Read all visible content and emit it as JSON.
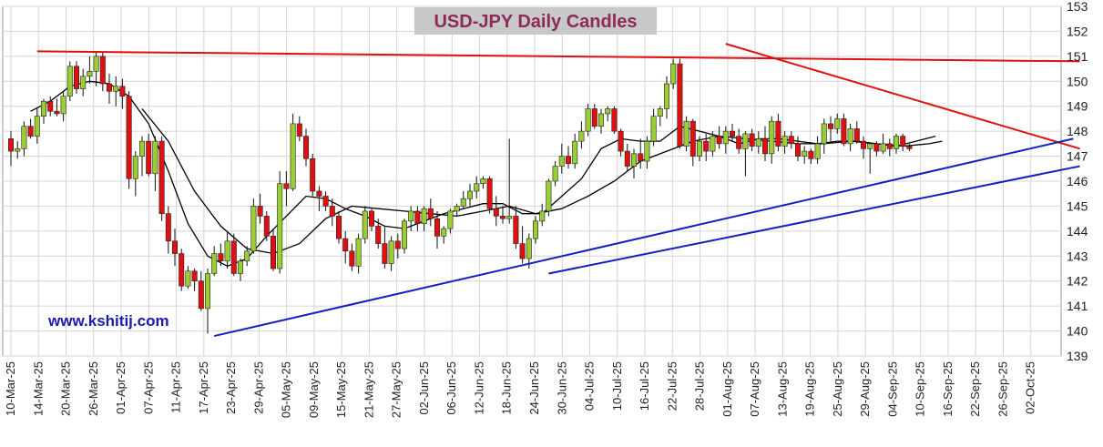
{
  "title": "USD-JPY Daily Candles",
  "watermark": "www.kshitij.com",
  "chart_data": {
    "type": "candlestick",
    "title": "USD-JPY Daily Candles",
    "ylim": [
      139,
      153
    ],
    "y_ticks": [
      139,
      140,
      141,
      142,
      143,
      144,
      145,
      146,
      147,
      148,
      149,
      150,
      151,
      152,
      153
    ],
    "x_tick_labels": [
      "10-Mar-25",
      "14-Mar-25",
      "20-Mar-25",
      "26-Mar-25",
      "01-Apr-25",
      "07-Apr-25",
      "11-Apr-25",
      "17-Apr-25",
      "23-Apr-25",
      "29-Apr-25",
      "05-May-25",
      "09-May-25",
      "15-May-25",
      "21-May-25",
      "27-May-25",
      "02-Jun-25",
      "06-Jun-25",
      "12-Jun-25",
      "18-Jun-25",
      "24-Jun-25",
      "30-Jun-25",
      "04-Jul-25",
      "10-Jul-25",
      "16-Jul-25",
      "22-Jul-25",
      "28-Jul-25",
      "01-Aug-25",
      "07-Aug-25",
      "13-Aug-25",
      "19-Aug-25",
      "25-Aug-25",
      "29-Aug-25",
      "04-Sep-25",
      "10-Sep-25",
      "16-Sep-25",
      "22-Sep-25",
      "26-Sep-25",
      "02-Oct-25"
    ],
    "grid": true,
    "colors": {
      "up": "#9acd32",
      "down": "#e01010",
      "wick": "#111111",
      "resistance": "#e01010",
      "support": "#1020c0",
      "ma": "#000000"
    },
    "candles": [
      [
        147.7,
        148.0,
        146.6,
        147.2
      ],
      [
        147.2,
        147.6,
        146.9,
        147.3
      ],
      [
        147.3,
        148.4,
        147.0,
        148.2
      ],
      [
        148.2,
        148.5,
        147.7,
        147.8
      ],
      [
        147.8,
        148.9,
        147.5,
        148.6
      ],
      [
        148.6,
        149.3,
        148.3,
        149.2
      ],
      [
        149.2,
        149.4,
        148.6,
        148.8
      ],
      [
        148.8,
        149.3,
        148.6,
        148.7
      ],
      [
        148.7,
        149.6,
        148.4,
        149.4
      ],
      [
        149.4,
        150.8,
        149.2,
        150.6
      ],
      [
        150.6,
        150.8,
        149.5,
        149.7
      ],
      [
        149.7,
        150.5,
        149.4,
        150.2
      ],
      [
        150.2,
        151.0,
        149.9,
        150.4
      ],
      [
        150.4,
        151.2,
        149.8,
        151.0
      ],
      [
        151.0,
        151.2,
        149.6,
        149.9
      ],
      [
        149.9,
        150.3,
        149.1,
        149.6
      ],
      [
        149.6,
        150.2,
        149.0,
        149.8
      ],
      [
        149.8,
        150.1,
        148.9,
        149.4
      ],
      [
        149.4,
        149.6,
        145.7,
        146.1
      ],
      [
        146.1,
        147.2,
        145.4,
        147.0
      ],
      [
        147.0,
        147.8,
        146.2,
        147.6
      ],
      [
        147.6,
        147.9,
        146.2,
        146.3
      ],
      [
        146.3,
        147.8,
        145.6,
        147.6
      ],
      [
        147.6,
        147.8,
        144.4,
        144.7
      ],
      [
        144.7,
        145.0,
        143.1,
        143.6
      ],
      [
        143.6,
        144.1,
        142.6,
        143.1
      ],
      [
        143.1,
        143.3,
        141.6,
        141.8
      ],
      [
        141.8,
        142.6,
        141.7,
        142.4
      ],
      [
        142.4,
        142.5,
        141.6,
        142.0
      ],
      [
        142.0,
        142.4,
        140.8,
        140.9
      ],
      [
        140.9,
        142.5,
        139.9,
        142.3
      ],
      [
        142.3,
        143.4,
        142.2,
        143.1
      ],
      [
        143.1,
        143.5,
        142.6,
        142.8
      ],
      [
        142.8,
        144.0,
        142.5,
        143.6
      ],
      [
        143.6,
        143.9,
        142.2,
        142.3
      ],
      [
        142.3,
        142.9,
        142.0,
        142.8
      ],
      [
        142.8,
        143.4,
        142.6,
        143.2
      ],
      [
        143.2,
        145.3,
        143.1,
        145.0
      ],
      [
        145.0,
        145.5,
        144.3,
        144.6
      ],
      [
        144.6,
        144.8,
        143.6,
        143.8
      ],
      [
        143.8,
        144.1,
        142.4,
        142.5
      ],
      [
        142.5,
        146.4,
        142.3,
        145.9
      ],
      [
        145.9,
        146.4,
        145.0,
        145.7
      ],
      [
        145.7,
        148.7,
        145.6,
        148.3
      ],
      [
        148.3,
        148.6,
        147.6,
        147.8
      ],
      [
        147.8,
        148.1,
        146.6,
        146.9
      ],
      [
        146.9,
        147.1,
        145.4,
        145.6
      ],
      [
        145.6,
        145.8,
        144.8,
        145.4
      ],
      [
        145.4,
        145.6,
        144.8,
        145.0
      ],
      [
        145.0,
        145.3,
        144.2,
        144.6
      ],
      [
        144.6,
        144.8,
        143.5,
        143.7
      ],
      [
        143.7,
        144.0,
        142.7,
        143.2
      ],
      [
        143.2,
        143.5,
        142.4,
        142.6
      ],
      [
        142.6,
        143.9,
        142.3,
        143.7
      ],
      [
        143.7,
        145.0,
        143.5,
        144.8
      ],
      [
        144.8,
        144.9,
        144.0,
        144.2
      ],
      [
        144.2,
        144.5,
        143.3,
        143.5
      ],
      [
        143.5,
        144.2,
        142.5,
        142.7
      ],
      [
        142.7,
        143.8,
        142.4,
        143.6
      ],
      [
        143.6,
        143.9,
        142.9,
        143.3
      ],
      [
        143.3,
        144.5,
        143.1,
        144.4
      ],
      [
        144.4,
        145.0,
        144.0,
        144.8
      ],
      [
        144.8,
        145.0,
        144.0,
        144.3
      ],
      [
        144.3,
        145.0,
        144.0,
        144.9
      ],
      [
        144.9,
        145.3,
        144.2,
        144.5
      ],
      [
        144.5,
        144.8,
        143.3,
        143.8
      ],
      [
        143.8,
        144.2,
        143.5,
        144.1
      ],
      [
        144.1,
        144.9,
        143.9,
        144.8
      ],
      [
        144.8,
        145.1,
        144.6,
        145.0
      ],
      [
        145.0,
        145.6,
        144.9,
        145.3
      ],
      [
        145.3,
        145.9,
        145.0,
        145.6
      ],
      [
        145.6,
        146.2,
        145.3,
        145.9
      ],
      [
        145.9,
        146.2,
        145.7,
        146.1
      ],
      [
        146.1,
        146.2,
        144.7,
        144.9
      ],
      [
        144.9,
        145.4,
        144.2,
        144.6
      ],
      [
        144.6,
        145.0,
        144.3,
        144.5
      ],
      [
        144.5,
        147.7,
        144.3,
        144.6
      ],
      [
        144.6,
        145.0,
        143.3,
        143.5
      ],
      [
        143.5,
        144.2,
        142.7,
        142.9
      ],
      [
        142.9,
        143.9,
        142.5,
        143.7
      ],
      [
        143.7,
        144.6,
        143.5,
        144.4
      ],
      [
        144.4,
        145.1,
        144.2,
        144.8
      ],
      [
        144.8,
        146.1,
        144.6,
        146.0
      ],
      [
        146.0,
        146.8,
        145.8,
        146.6
      ],
      [
        146.6,
        147.5,
        146.3,
        147.0
      ],
      [
        147.0,
        147.4,
        146.5,
        146.7
      ],
      [
        146.7,
        147.9,
        146.5,
        147.6
      ],
      [
        147.6,
        148.4,
        147.3,
        148.0
      ],
      [
        148.0,
        149.1,
        147.8,
        148.9
      ],
      [
        148.9,
        149.1,
        148.1,
        148.2
      ],
      [
        148.2,
        148.9,
        147.9,
        148.7
      ],
      [
        148.7,
        149.0,
        148.4,
        148.9
      ],
      [
        148.9,
        149.0,
        147.9,
        148.0
      ],
      [
        148.0,
        148.1,
        147.0,
        147.2
      ],
      [
        147.2,
        147.5,
        146.4,
        146.6
      ],
      [
        146.6,
        147.3,
        146.1,
        147.1
      ],
      [
        147.1,
        147.7,
        146.5,
        146.8
      ],
      [
        146.8,
        147.8,
        146.5,
        147.6
      ],
      [
        147.6,
        148.9,
        147.4,
        148.6
      ],
      [
        148.6,
        149.0,
        148.2,
        148.9
      ],
      [
        148.9,
        150.2,
        148.5,
        149.9
      ],
      [
        149.9,
        150.9,
        149.7,
        150.7
      ],
      [
        150.7,
        150.9,
        147.3,
        147.4
      ],
      [
        147.4,
        148.6,
        147.2,
        148.4
      ],
      [
        148.4,
        148.5,
        146.6,
        147.0
      ],
      [
        147.0,
        147.8,
        146.8,
        147.6
      ],
      [
        147.6,
        147.9,
        146.8,
        147.2
      ],
      [
        147.2,
        148.0,
        147.0,
        147.8
      ],
      [
        147.8,
        148.2,
        147.3,
        147.5
      ],
      [
        147.5,
        148.2,
        147.1,
        148.0
      ],
      [
        148.0,
        148.3,
        147.6,
        147.8
      ],
      [
        147.8,
        148.1,
        147.1,
        147.3
      ],
      [
        147.3,
        148.0,
        146.2,
        147.9
      ],
      [
        147.9,
        148.1,
        147.2,
        147.4
      ],
      [
        147.4,
        148.0,
        147.1,
        147.7
      ],
      [
        147.7,
        148.2,
        146.8,
        147.1
      ],
      [
        147.1,
        148.6,
        146.7,
        148.4
      ],
      [
        148.4,
        148.7,
        147.2,
        147.4
      ],
      [
        147.4,
        148.0,
        147.1,
        147.8
      ],
      [
        147.8,
        148.0,
        147.3,
        147.5
      ],
      [
        147.5,
        147.8,
        146.8,
        147.0
      ],
      [
        147.0,
        147.4,
        146.7,
        147.2
      ],
      [
        147.2,
        147.3,
        146.7,
        146.9
      ],
      [
        146.9,
        147.8,
        146.7,
        147.5
      ],
      [
        147.5,
        148.5,
        147.1,
        148.3
      ],
      [
        148.3,
        148.6,
        147.6,
        148.1
      ],
      [
        148.1,
        148.7,
        147.9,
        148.5
      ],
      [
        148.5,
        148.7,
        147.4,
        147.5
      ],
      [
        147.5,
        148.3,
        147.2,
        148.1
      ],
      [
        148.1,
        148.4,
        147.5,
        147.6
      ],
      [
        147.6,
        147.8,
        146.9,
        147.3
      ],
      [
        147.3,
        147.5,
        146.3,
        147.5
      ],
      [
        147.5,
        147.6,
        147.0,
        147.2
      ],
      [
        147.2,
        147.9,
        147.1,
        147.5
      ],
      [
        147.5,
        147.7,
        147.0,
        147.3
      ],
      [
        147.3,
        147.9,
        147.1,
        147.8
      ],
      [
        147.8,
        147.9,
        147.2,
        147.4
      ],
      [
        147.4,
        147.5,
        147.2,
        147.3
      ]
    ],
    "moving_averages": [
      {
        "points": [
          [
            3,
            148.8
          ],
          [
            6,
            149.2
          ],
          [
            9,
            149.8
          ],
          [
            12,
            150.0
          ],
          [
            15,
            149.9
          ],
          [
            18,
            149.4
          ],
          [
            21,
            148.3
          ],
          [
            24,
            146.4
          ],
          [
            27,
            144.3
          ],
          [
            30,
            143.0
          ],
          [
            33,
            142.6
          ],
          [
            36,
            142.9
          ],
          [
            39,
            143.8
          ],
          [
            42,
            144.6
          ],
          [
            45,
            145.4
          ],
          [
            48,
            145.3
          ],
          [
            51,
            144.9
          ],
          [
            54,
            144.6
          ],
          [
            57,
            144.2
          ],
          [
            60,
            144.1
          ],
          [
            63,
            144.4
          ],
          [
            66,
            144.7
          ],
          [
            69,
            144.9
          ],
          [
            72,
            145.1
          ],
          [
            75,
            145.1
          ],
          [
            78,
            144.7
          ],
          [
            81,
            144.7
          ],
          [
            84,
            145.4
          ],
          [
            87,
            146.1
          ],
          [
            90,
            147.3
          ],
          [
            93,
            147.7
          ],
          [
            96,
            147.6
          ],
          [
            99,
            147.6
          ],
          [
            102,
            148.2
          ],
          [
            105,
            148.0
          ],
          [
            108,
            147.8
          ],
          [
            111,
            147.5
          ],
          [
            114,
            147.7
          ],
          [
            117,
            147.7
          ],
          [
            120,
            147.6
          ],
          [
            123,
            147.5
          ],
          [
            126,
            147.6
          ],
          [
            129,
            147.6
          ],
          [
            132,
            147.5
          ],
          [
            135,
            147.4
          ],
          [
            138,
            147.6
          ],
          [
            141,
            147.8
          ]
        ]
      },
      {
        "points": [
          [
            20,
            148.9
          ],
          [
            24,
            147.6
          ],
          [
            28,
            145.6
          ],
          [
            32,
            144.2
          ],
          [
            36,
            143.3
          ],
          [
            40,
            143.1
          ],
          [
            44,
            143.5
          ],
          [
            48,
            144.5
          ],
          [
            52,
            145.0
          ],
          [
            56,
            144.9
          ],
          [
            60,
            144.8
          ],
          [
            64,
            144.7
          ],
          [
            68,
            144.6
          ],
          [
            72,
            144.8
          ],
          [
            76,
            145.0
          ],
          [
            80,
            144.7
          ],
          [
            84,
            144.9
          ],
          [
            88,
            145.4
          ],
          [
            92,
            146.0
          ],
          [
            96,
            146.8
          ],
          [
            100,
            147.2
          ],
          [
            104,
            147.6
          ],
          [
            108,
            147.8
          ],
          [
            112,
            147.7
          ],
          [
            116,
            147.6
          ],
          [
            120,
            147.5
          ],
          [
            124,
            147.5
          ],
          [
            128,
            147.6
          ],
          [
            132,
            147.5
          ],
          [
            136,
            147.4
          ],
          [
            140,
            147.5
          ],
          [
            142,
            147.6
          ]
        ]
      }
    ],
    "trendlines": [
      {
        "role": "resistance",
        "from": [
          4,
          151.2
        ],
        "to": [
          163,
          150.8
        ]
      },
      {
        "role": "resistance",
        "from": [
          109,
          151.5
        ],
        "to": [
          163,
          147.3
        ]
      },
      {
        "role": "support",
        "from": [
          31,
          139.8
        ],
        "to": [
          162,
          147.7
        ]
      },
      {
        "role": "support",
        "from": [
          82,
          142.3
        ],
        "to": [
          163,
          146.6
        ]
      }
    ]
  }
}
